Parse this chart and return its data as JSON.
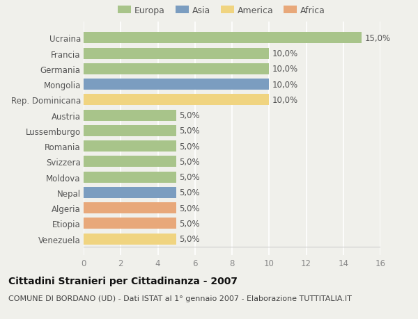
{
  "countries": [
    "Ucraina",
    "Francia",
    "Germania",
    "Mongolia",
    "Rep. Dominicana",
    "Austria",
    "Lussemburgo",
    "Romania",
    "Svizzera",
    "Moldova",
    "Nepal",
    "Algeria",
    "Etiopia",
    "Venezuela"
  ],
  "values": [
    15.0,
    10.0,
    10.0,
    10.0,
    10.0,
    5.0,
    5.0,
    5.0,
    5.0,
    5.0,
    5.0,
    5.0,
    5.0,
    5.0
  ],
  "continents": [
    "Europa",
    "Europa",
    "Europa",
    "Asia",
    "America",
    "Europa",
    "Europa",
    "Europa",
    "Europa",
    "Europa",
    "Asia",
    "Africa",
    "Africa",
    "America"
  ],
  "colors": {
    "Europa": "#a8c48a",
    "Asia": "#7b9dc0",
    "America": "#f0d480",
    "Africa": "#e8a87a"
  },
  "xlim": [
    0,
    16
  ],
  "xticks": [
    0,
    2,
    4,
    6,
    8,
    10,
    12,
    14,
    16
  ],
  "title": "Cittadini Stranieri per Cittadinanza - 2007",
  "subtitle": "COMUNE DI BORDANO (UD) - Dati ISTAT al 1° gennaio 2007 - Elaborazione TUTTITALIA.IT",
  "background_color": "#f0f0eb",
  "plot_bg_color": "#eeeee8",
  "grid_color": "#ffffff",
  "bar_height": 0.72,
  "label_fontsize": 8.5,
  "ytick_fontsize": 8.5,
  "xtick_fontsize": 8.5,
  "title_fontsize": 10,
  "subtitle_fontsize": 8,
  "legend_fontsize": 9
}
